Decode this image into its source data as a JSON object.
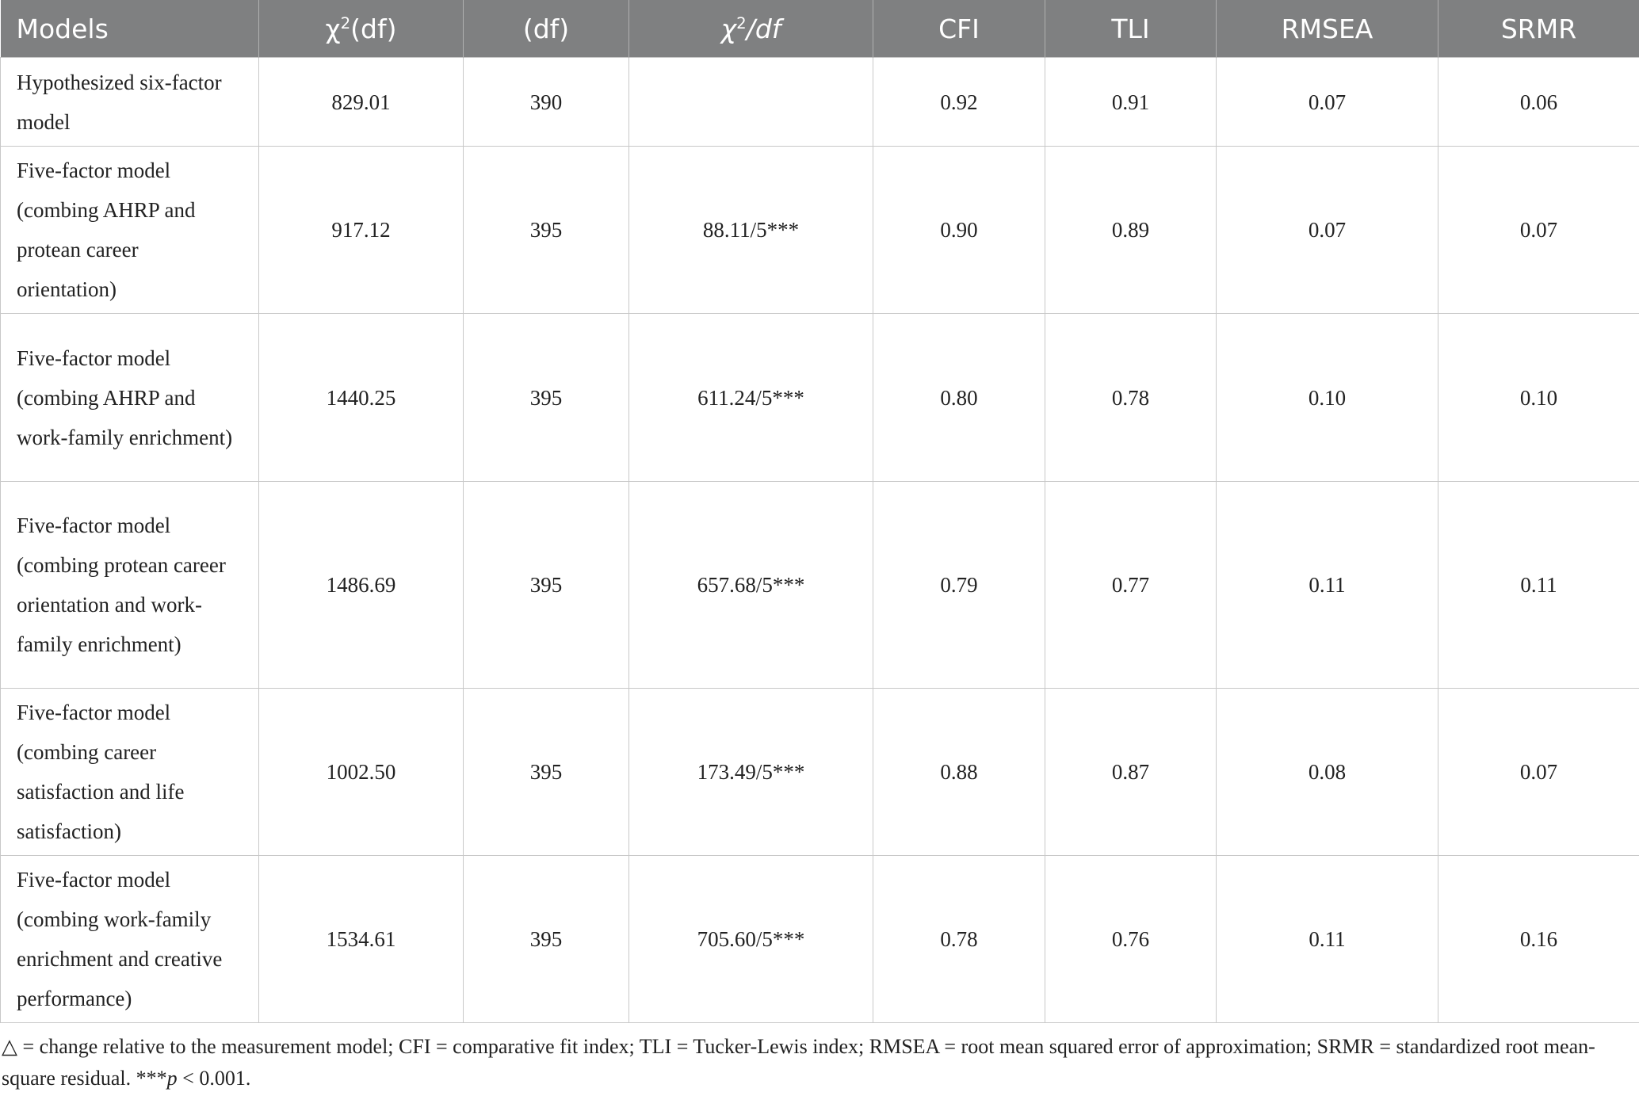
{
  "table": {
    "header": [
      {
        "parts": [
          "Models"
        ]
      },
      {
        "parts": [
          "χ",
          "2",
          "(df)"
        ],
        "style": [
          "",
          "sup",
          ""
        ]
      },
      {
        "parts": [
          "(df)"
        ]
      },
      {
        "parts": [
          "χ",
          "2",
          "/df"
        ],
        "style": [
          "i",
          "sup",
          "i"
        ]
      },
      {
        "parts": [
          "CFI"
        ]
      },
      {
        "parts": [
          "TLI"
        ]
      },
      {
        "parts": [
          "RMSEA"
        ]
      },
      {
        "parts": [
          "SRMR"
        ]
      }
    ],
    "rows": [
      [
        "Hypothesized six-factor model",
        "829.01",
        "390",
        null,
        "0.92",
        "0.91",
        "0.07",
        "0.06"
      ],
      [
        "Five-factor model (combing AHRP and protean career orientation)",
        "917.12",
        "395",
        "88.11/5***",
        "0.90",
        "0.89",
        "0.07",
        "0.07"
      ],
      [
        "Five-factor model (combing AHRP and work-family enrichment)",
        "1440.25",
        "395",
        "611.24/5***",
        "0.80",
        "0.78",
        "0.10",
        "0.10"
      ],
      [
        "Five-factor model (combing protean career orientation and work-family enrichment)",
        "1486.69",
        "395",
        "657.68/5***",
        "0.79",
        "0.77",
        "0.11",
        "0.11"
      ],
      [
        "Five-factor model (combing career satisfaction and life satisfaction)",
        "1002.50",
        "395",
        "173.49/5***",
        "0.88",
        "0.87",
        "0.08",
        "0.07"
      ],
      [
        "Five-factor model (combing work-family enrichment and creative performance)",
        "1534.61",
        "395",
        "705.60/5***",
        "0.78",
        "0.76",
        "0.11",
        "0.16"
      ]
    ]
  },
  "footnote": {
    "parts": [
      "△ = change relative to the measurement model; CFI = comparative fit index; TLI = Tucker-Lewis index; RMSEA = root mean squared error of approximation; SRMR = standardized root mean-square residual. ***",
      "p",
      " < 0.001."
    ],
    "style": [
      "",
      "i",
      ""
    ]
  }
}
